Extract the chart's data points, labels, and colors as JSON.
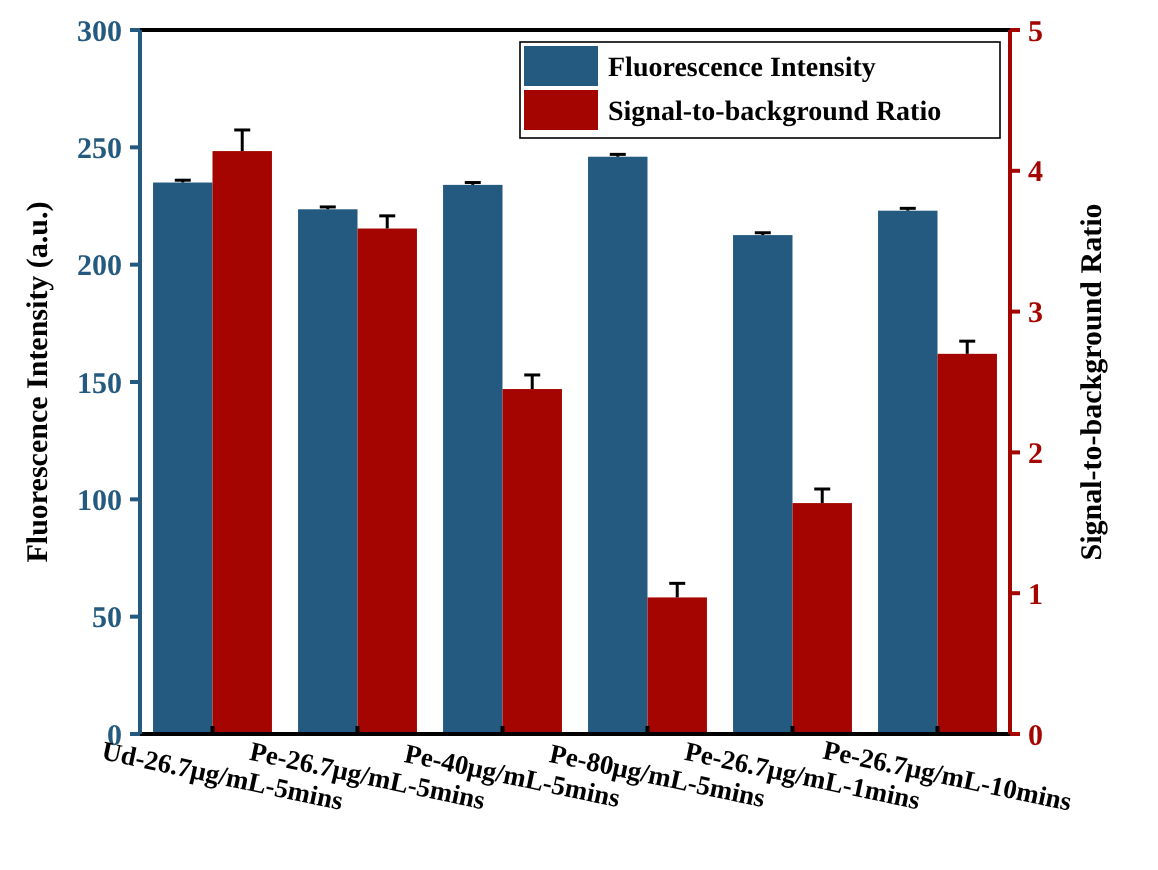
{
  "chart_data": {
    "type": "bar",
    "categories": [
      "Ud-26.7μg/mL-5mins",
      "Pe-26.7μg/mL-5mins",
      "Pe-40μg/mL-5mins",
      "Pe-80μg/mL-5mins",
      "Pe-26.7μg/mL-1mins",
      "Pe-26.7μg/mL-10mins"
    ],
    "series": [
      {
        "name": "Fluorescence Intensity",
        "color": "#245a80",
        "values": [
          235,
          223.6,
          234,
          246,
          212.6,
          223
        ],
        "errors": [
          1,
          1,
          1,
          1,
          1,
          1
        ]
      },
      {
        "name": "Signal-to-background Ratio",
        "color": "#a50500",
        "axis": "y2",
        "values": [
          4.14,
          3.59,
          2.45,
          0.97,
          1.64,
          2.7
        ],
        "errors": [
          0.15,
          0.09,
          0.1,
          0.1,
          0.1,
          0.09
        ]
      }
    ],
    "ylabel": "Fluorescence Intensity (a.u.)",
    "y2label": "Signal-to-background Ratio",
    "ylim": [
      0,
      300
    ],
    "yticks": [
      0,
      50,
      100,
      150,
      200,
      250,
      300
    ],
    "y2lim": [
      0,
      5
    ],
    "y2ticks": [
      0,
      1,
      2,
      3,
      4,
      5
    ],
    "legend": "top right"
  }
}
